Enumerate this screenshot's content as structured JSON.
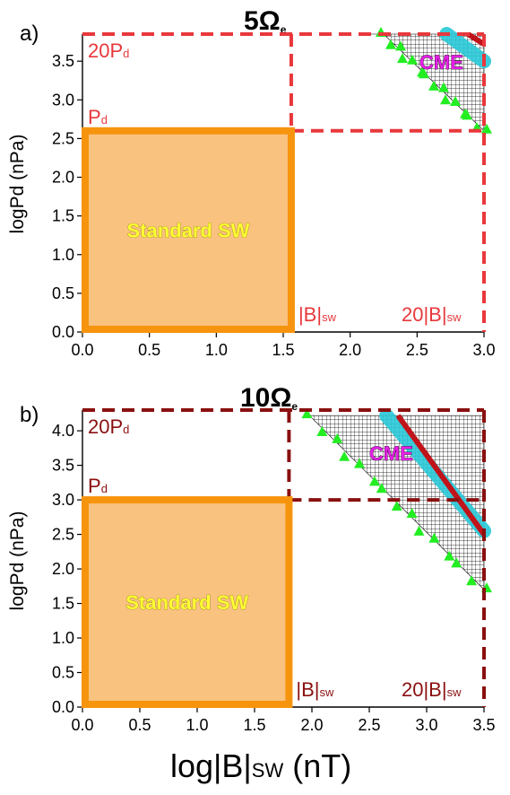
{
  "chart_data": [
    {
      "type": "scatter",
      "panel_label": "a)",
      "title": "5Ω",
      "title_sub": "e",
      "ylabel": "logPd (nPa)",
      "xlim": [
        0,
        3.0
      ],
      "ylim": [
        0,
        3.85
      ],
      "x_ticks": [
        "0.0",
        "0.5",
        "1.0",
        "1.5",
        "2.0",
        "2.5",
        "3.0"
      ],
      "y_ticks": [
        "0.0",
        "0.5",
        "1.0",
        "1.5",
        "2.0",
        "2.5",
        "3.0",
        "3.5"
      ],
      "y_tick_values": [
        0,
        0.5,
        1.0,
        1.5,
        2.0,
        2.5,
        3.0,
        3.5
      ],
      "x_tick_values": [
        0,
        0.5,
        1.0,
        1.5,
        2.0,
        2.5,
        3.0
      ],
      "standard_sw": {
        "label": "Standard SW",
        "x": [
          0,
          1.56
        ],
        "y": [
          0,
          2.6
        ]
      },
      "dashed_box": {
        "x": [
          0,
          3.0
        ],
        "y": [
          0,
          3.85
        ],
        "inner_x": 1.56,
        "inner_y": 2.6
      },
      "annotations": {
        "pd20_main": "20P",
        "pd20_sub": "d",
        "pd_main": "P",
        "pd_sub": "d",
        "b_main": "|B|",
        "b_sub": "sw",
        "b20_main": "20|B|",
        "b20_sub": "sw",
        "cme": "CME"
      },
      "upper_edge": [
        [
          2.15,
          3.85
        ],
        [
          3.0,
          3.85
        ]
      ],
      "lower_edge": [
        [
          2.25,
          3.85
        ],
        [
          3.0,
          2.6
        ]
      ],
      "cyan_band": [
        [
          2.72,
          3.85
        ],
        [
          3.0,
          3.5
        ]
      ],
      "red_band": [
        [
          2.88,
          3.85
        ],
        [
          3.0,
          3.72
        ]
      ],
      "colors": {
        "box": "#e8383c",
        "standard_fill": "#f9c27f",
        "standard_edge": "#f7940e",
        "cme_text": "#e61ee6",
        "cyan": "#29c8d8",
        "red": "#c0141a",
        "green": "#22ee22"
      }
    },
    {
      "type": "scatter",
      "panel_label": "b)",
      "title": "10Ω",
      "title_sub": "e",
      "ylabel": "logPd (nPa)",
      "xlabel_main": "log|B|",
      "xlabel_sub": "SW",
      "xlabel_unit": " (nT)",
      "xlim": [
        0,
        3.5
      ],
      "ylim": [
        0,
        4.3
      ],
      "x_ticks": [
        "0.0",
        "0.5",
        "1.0",
        "1.5",
        "2.0",
        "2.5",
        "3.0",
        "3.5"
      ],
      "y_ticks": [
        "0.0",
        "0.5",
        "1.0",
        "1.5",
        "2.0",
        "2.5",
        "3.0",
        "3.5",
        "4.0"
      ],
      "y_tick_values": [
        0,
        0.5,
        1.0,
        1.5,
        2.0,
        2.5,
        3.0,
        3.5,
        4.0
      ],
      "x_tick_values": [
        0,
        0.5,
        1.0,
        1.5,
        2.0,
        2.5,
        3.0,
        3.5
      ],
      "standard_sw": {
        "label": "Standard SW",
        "x": [
          0,
          1.8
        ],
        "y": [
          0,
          3.0
        ]
      },
      "dashed_box": {
        "x": [
          0,
          3.5
        ],
        "y": [
          0,
          4.3
        ],
        "inner_x": 1.8,
        "inner_y": 3.0
      },
      "annotations": {
        "pd20_main": "20P",
        "pd20_sub": "d",
        "pd_main": "P",
        "pd_sub": "d",
        "b_main": "|B|",
        "b_sub": "sw",
        "b20_main": "20|B|",
        "b20_sub": "sw",
        "cme": "CME"
      },
      "upper_edge": [
        [
          1.98,
          4.22
        ],
        [
          3.5,
          4.22
        ]
      ],
      "lower_edge": [
        [
          1.98,
          4.22
        ],
        [
          3.5,
          1.7
        ]
      ],
      "cyan_band": [
        [
          2.65,
          4.22
        ],
        [
          3.5,
          2.55
        ]
      ],
      "red_band": [
        [
          2.75,
          4.22
        ],
        [
          3.5,
          2.5
        ]
      ],
      "colors": {
        "box": "#8a1010",
        "standard_fill": "#f9c27f",
        "standard_edge": "#f7940e",
        "cme_text": "#e61ee6",
        "cyan": "#29c8d8",
        "red": "#c0141a",
        "green": "#22ee22"
      }
    }
  ]
}
